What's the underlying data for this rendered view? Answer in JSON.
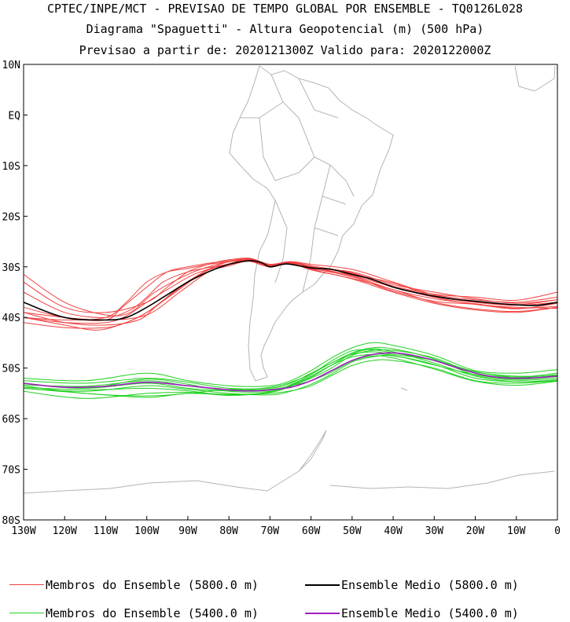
{
  "header": {
    "line1": "CPTEC/INPE/MCT - PREVISAO DE TEMPO GLOBAL POR ENSEMBLE - TQ0126L028",
    "line2": "Diagrama \"Spaguetti\" - Altura Geopotencial (m) (500 hPa)",
    "line3": "Previsao a partir de: 2020121300Z  Valido para: 2020122000Z"
  },
  "axes": {
    "lat_labels": [
      "10N",
      "EQ",
      "10S",
      "20S",
      "30S",
      "40S",
      "50S",
      "60S",
      "70S",
      "80S"
    ],
    "lon_labels": [
      "130W",
      "120W",
      "110W",
      "100W",
      "90W",
      "80W",
      "70W",
      "60W",
      "50W",
      "40W",
      "30W",
      "20W",
      "10W",
      "0"
    ],
    "lon_range": [
      -130,
      0
    ],
    "lat_range": [
      -80,
      10
    ]
  },
  "legend": [
    {
      "label": "Membros do Ensemble (5800.0 m)",
      "color": "#f04040"
    },
    {
      "label": "Ensemble Medio (5800.0 m)",
      "color": "#000000"
    },
    {
      "label": "Membros do Ensemble (5400.0 m)",
      "color": "#20d020"
    },
    {
      "label": "Ensemble Medio (5400.0 m)",
      "color": "#a020c0"
    }
  ],
  "chart_data": {
    "type": "line",
    "x_unit": "longitude (degrees east)",
    "y_unit": "latitude (degrees north)",
    "series": [
      {
        "name": "Ensemble Medio (5800.0 m)",
        "color": "#000000",
        "x": [
          -130,
          -120,
          -110,
          -105,
          -100,
          -95,
          -90,
          -85,
          -80,
          -75,
          -72,
          -70,
          -67,
          -65,
          -60,
          -55,
          -50,
          -45,
          -40,
          -35,
          -30,
          -25,
          -20,
          -15,
          -10,
          -5,
          0
        ],
        "y": [
          -37,
          -40,
          -40.5,
          -40,
          -38,
          -35.5,
          -33,
          -31,
          -29.5,
          -28.8,
          -29.2,
          -30,
          -29.5,
          -29.5,
          -30.2,
          -30.5,
          -31.5,
          -32.5,
          -34,
          -35,
          -35.8,
          -36.4,
          -36.8,
          -37.2,
          -37.5,
          -37.6,
          -37
        ]
      },
      {
        "name": "Ensemble Medio (5400.0 m)",
        "color": "#a020c0",
        "x": [
          -130,
          -120,
          -110,
          -100,
          -90,
          -80,
          -75,
          -70,
          -65,
          -60,
          -55,
          -50,
          -45,
          -40,
          -35,
          -30,
          -25,
          -20,
          -15,
          -10,
          -5,
          0
        ],
        "y": [
          -53,
          -53.8,
          -53.6,
          -52.8,
          -53.5,
          -54.3,
          -54.5,
          -54.3,
          -53.8,
          -52.5,
          -50.5,
          -48.5,
          -47.3,
          -47,
          -47.5,
          -48.5,
          -49.8,
          -51,
          -51.8,
          -52,
          -51.9,
          -51.6
        ]
      },
      {
        "values_note": "",
        "color": "#f04040",
        "members_5800": [
          {
            "x": [
              -130,
              -120,
              -110,
              -100,
              -95,
              -90,
              -85,
              -80,
              -75,
              -70,
              -65,
              -60,
              -50,
              -40,
              -30,
              -20,
              -10,
              0
            ],
            "y": [
              -33,
              -38,
              -39,
              -37,
              -34,
              -31,
              -29.5,
              -28.6,
              -28.3,
              -29.5,
              -29,
              -29.5,
              -30.5,
              -33,
              -35.5,
              -36.5,
              -37,
              -36
            ]
          },
          {
            "x": [
              -130,
              -120,
              -110,
              -102,
              -98,
              -92,
              -85,
              -80,
              -75,
              -70,
              -65,
              -60,
              -50,
              -40,
              -30,
              -20,
              -10,
              0
            ],
            "y": [
              -39,
              -41,
              -41.5,
              -40.5,
              -38,
              -34,
              -30.5,
              -29,
              -28.5,
              -29.8,
              -29.2,
              -30,
              -31.8,
              -34.5,
              -36.3,
              -37.3,
              -38.2,
              -37.8
            ]
          },
          {
            "x": [
              -130,
              -120,
              -110,
              -105,
              -100,
              -95,
              -90,
              -85,
              -80,
              -75,
              -70,
              -65,
              -60,
              -50,
              -40,
              -30,
              -20,
              -10,
              0
            ],
            "y": [
              -40,
              -40.5,
              -40,
              -37,
              -33,
              -31,
              -30.3,
              -29.5,
              -29,
              -28.4,
              -29.5,
              -29,
              -29.8,
              -31.2,
              -33.8,
              -35.4,
              -36,
              -36.6,
              -35
            ]
          },
          {
            "x": [
              -130,
              -120,
              -110,
              -105,
              -100,
              -95,
              -88,
              -80,
              -76,
              -70,
              -65,
              -60,
              -50,
              -40,
              -30,
              -20,
              -10,
              0
            ],
            "y": [
              -41,
              -42,
              -42,
              -41,
              -39,
              -36,
              -32,
              -29.5,
              -28.7,
              -30,
              -29.3,
              -30.6,
              -32.3,
              -34.5,
              -37,
              -38.3,
              -38.8,
              -38
            ]
          },
          {
            "x": [
              -130,
              -120,
              -110,
              -106,
              -100,
              -95,
              -90,
              -85,
              -80,
              -75,
              -70,
              -65,
              -60,
              -50,
              -40,
              -30,
              -20,
              -10,
              0
            ],
            "y": [
              -38,
              -40,
              -40.5,
              -38,
              -34,
              -31,
              -30,
              -29.3,
              -28.8,
              -28.5,
              -30,
              -29,
              -30.2,
              -31,
              -33.5,
              -35,
              -36.3,
              -37.2,
              -36.5
            ]
          },
          {
            "x": [
              -130,
              -120,
              -112,
              -105,
              -100,
              -93,
              -86,
              -80,
              -75,
              -70,
              -65,
              -60,
              -50,
              -40,
              -30,
              -20,
              -10,
              0
            ],
            "y": [
              -40,
              -41.5,
              -42.5,
              -41,
              -39,
              -35,
              -31,
              -29.5,
              -28.6,
              -29.8,
              -29.4,
              -30.3,
              -32,
              -34.8,
              -36.8,
              -37.4,
              -38.3,
              -37.2
            ]
          },
          {
            "x": [
              -130,
              -120,
              -110,
              -104,
              -100,
              -96,
              -90,
              -84,
              -80,
              -75,
              -70,
              -65,
              -60,
              -50,
              -40,
              -30,
              -20,
              -10,
              0
            ],
            "y": [
              -35,
              -39,
              -40,
              -38.5,
              -36,
              -33,
              -31,
              -30,
              -29.5,
              -28.9,
              -29.7,
              -29.2,
              -30.4,
              -31.5,
              -33.2,
              -35.8,
              -37,
              -37.5,
              -36.5
            ]
          },
          {
            "x": [
              -130,
              -120,
              -110,
              -100,
              -92,
              -85,
              -80,
              -75,
              -70,
              -65,
              -60,
              -50,
              -40,
              -30,
              -20,
              -10,
              0
            ],
            "y": [
              -39,
              -40,
              -40.5,
              -39.5,
              -35,
              -31,
              -29.8,
              -28.8,
              -29.6,
              -29.1,
              -30.1,
              -31.7,
              -34,
              -36,
              -37.4,
              -38,
              -38.2
            ]
          },
          {
            "x": [
              -130,
              -120,
              -110,
              -104,
              -98,
              -90,
              -85,
              -80,
              -75,
              -70,
              -65,
              -60,
              -50,
              -40,
              -30,
              -20,
              -10,
              0
            ],
            "y": [
              -31.5,
              -37,
              -39.5,
              -39,
              -35,
              -31.5,
              -30,
              -29,
              -28.7,
              -29.5,
              -29,
              -30,
              -31.3,
              -34,
              -35.7,
              -37,
              -37.6,
              -37
            ]
          },
          {
            "x": [
              -130,
              -120,
              -110,
              -105,
              -100,
              -94,
              -88,
              -80,
              -75,
              -70,
              -65,
              -60,
              -50,
              -40,
              -30,
              -20,
              -10,
              0
            ],
            "y": [
              -40,
              -41,
              -41,
              -39.7,
              -37,
              -34,
              -31.3,
              -29.4,
              -28.5,
              -29.9,
              -29.3,
              -30.5,
              -32.4,
              -35,
              -37.2,
              -38.5,
              -39,
              -38
            ]
          }
        ]
      },
      {
        "values_note": "",
        "color": "#20d020",
        "members_5400": [
          {
            "x": [
              -130,
              -115,
              -100,
              -90,
              -80,
              -70,
              -65,
              -60,
              -55,
              -50,
              -45,
              -40,
              -30,
              -20,
              -10,
              0
            ],
            "y": [
              -52,
              -52.5,
              -51,
              -52.5,
              -53.5,
              -53.5,
              -52.5,
              -50.5,
              -48,
              -46,
              -45,
              -45.5,
              -47.5,
              -50.5,
              -51,
              -50.3
            ]
          },
          {
            "x": [
              -130,
              -115,
              -100,
              -90,
              -80,
              -70,
              -65,
              -60,
              -55,
              -50,
              -45,
              -40,
              -30,
              -20,
              -10,
              0
            ],
            "y": [
              -54,
              -55,
              -55.8,
              -55,
              -55.3,
              -55,
              -54.5,
              -53.5,
              -51.5,
              -49.5,
              -48.5,
              -48.5,
              -50,
              -52.5,
              -53,
              -52.5
            ]
          },
          {
            "x": [
              -130,
              -115,
              -100,
              -90,
              -80,
              -70,
              -65,
              -60,
              -55,
              -50,
              -45,
              -40,
              -30,
              -20,
              -10,
              0
            ],
            "y": [
              -53,
              -54,
              -53,
              -54,
              -54.5,
              -54.2,
              -53.5,
              -52,
              -50,
              -47.5,
              -46.5,
              -46.5,
              -48,
              -51,
              -51.8,
              -51
            ]
          },
          {
            "x": [
              -130,
              -115,
              -100,
              -90,
              -80,
              -70,
              -65,
              -60,
              -55,
              -50,
              -45,
              -40,
              -30,
              -20,
              -10,
              0
            ],
            "y": [
              -52.5,
              -53,
              -52,
              -52.8,
              -54,
              -54,
              -53,
              -51,
              -49,
              -47,
              -46,
              -46.2,
              -48.2,
              -51.4,
              -52.4,
              -52
            ]
          },
          {
            "x": [
              -130,
              -115,
              -100,
              -90,
              -80,
              -70,
              -65,
              -60,
              -55,
              -50,
              -45,
              -40,
              -30,
              -20,
              -10,
              0
            ],
            "y": [
              -54,
              -54.6,
              -53.5,
              -54.2,
              -55,
              -55.3,
              -54.6,
              -53.2,
              -51.2,
              -48.8,
              -47.8,
              -47.6,
              -49.3,
              -52,
              -52.7,
              -52.5
            ]
          },
          {
            "x": [
              -130,
              -115,
              -100,
              -90,
              -80,
              -70,
              -65,
              -60,
              -55,
              -50,
              -45,
              -40,
              -30,
              -20,
              -10,
              0
            ],
            "y": [
              -53.3,
              -53.6,
              -52.5,
              -53.5,
              -54.3,
              -53.8,
              -52.8,
              -51.2,
              -49,
              -47.3,
              -46.8,
              -47.3,
              -48.5,
              -50.8,
              -51.6,
              -51.5
            ]
          },
          {
            "x": [
              -130,
              -115,
              -100,
              -90,
              -80,
              -70,
              -65,
              -60,
              -55,
              -50,
              -45,
              -40,
              -30,
              -20,
              -10,
              0
            ],
            "y": [
              -54.6,
              -56,
              -55,
              -54.8,
              -55.2,
              -54.8,
              -53.6,
              -51.8,
              -49.4,
              -47.2,
              -46.2,
              -46.8,
              -49,
              -51.6,
              -52.7,
              -52.3
            ]
          },
          {
            "x": [
              -130,
              -115,
              -100,
              -90,
              -80,
              -70,
              -65,
              -60,
              -55,
              -50,
              -45,
              -40,
              -30,
              -20,
              -10,
              0
            ],
            "y": [
              -53,
              -54,
              -52.2,
              -53.2,
              -54.6,
              -54.6,
              -53.4,
              -51.6,
              -49.4,
              -47.8,
              -47.3,
              -47.5,
              -49.4,
              -51.3,
              -52.2,
              -51.7
            ]
          },
          {
            "x": [
              -130,
              -115,
              -100,
              -90,
              -80,
              -70,
              -65,
              -60,
              -55,
              -50,
              -45,
              -40,
              -30,
              -20,
              -10,
              0
            ],
            "y": [
              -53.8,
              -54.3,
              -54,
              -54.5,
              -55.4,
              -54.7,
              -53.3,
              -51.3,
              -48.6,
              -46.6,
              -46.4,
              -47,
              -48.4,
              -50.7,
              -51.8,
              -51.3
            ]
          },
          {
            "x": [
              -130,
              -115,
              -100,
              -90,
              -80,
              -70,
              -65,
              -60,
              -55,
              -50,
              -45,
              -40,
              -30,
              -20,
              -10,
              0
            ],
            "y": [
              -53.5,
              -55,
              -55.5,
              -55,
              -54.2,
              -54.4,
              -53.5,
              -52.5,
              -50.8,
              -48.6,
              -47.6,
              -48,
              -50.2,
              -52.6,
              -53.4,
              -52.6
            ]
          }
        ]
      }
    ]
  }
}
